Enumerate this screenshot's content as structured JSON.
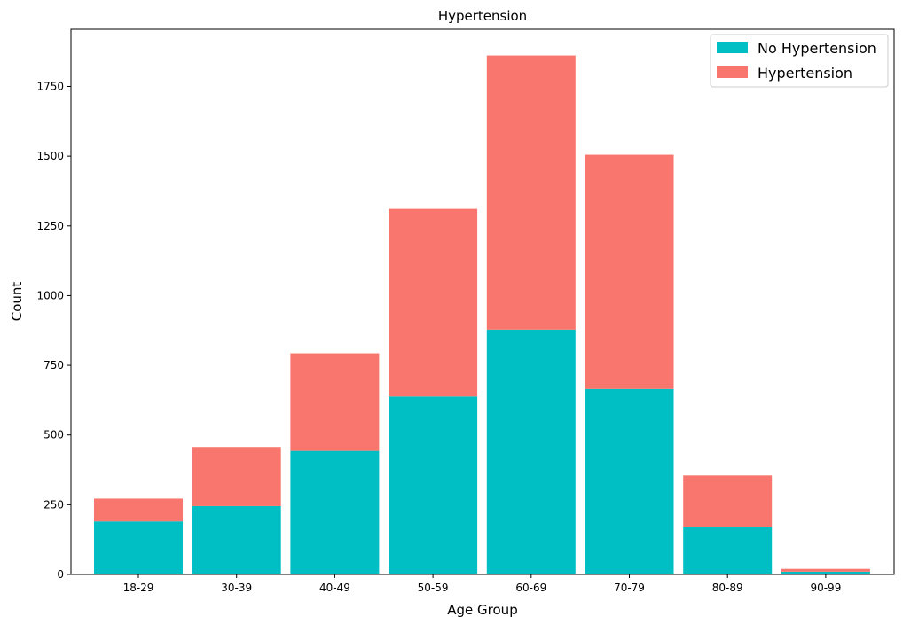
{
  "chart_data": {
    "type": "bar",
    "stacked": true,
    "title": "Hypertension",
    "xlabel": "Age Group",
    "ylabel": "Count",
    "categories": [
      "18-29",
      "30-39",
      "40-49",
      "50-59",
      "60-69",
      "70-79",
      "80-89",
      "90-99"
    ],
    "series": [
      {
        "name": "No Hypertension",
        "color": "#00BFC4",
        "values": [
          190,
          245,
          443,
          638,
          878,
          665,
          170,
          10
        ]
      },
      {
        "name": "Hypertension",
        "color": "#F8766D",
        "values": [
          82,
          212,
          350,
          673,
          983,
          840,
          185,
          10
        ]
      }
    ],
    "ylim": [
      0,
      1955
    ],
    "yticks": [
      0,
      250,
      500,
      750,
      1000,
      1250,
      1500,
      1750
    ],
    "legend": "top-right",
    "grid": false
  }
}
